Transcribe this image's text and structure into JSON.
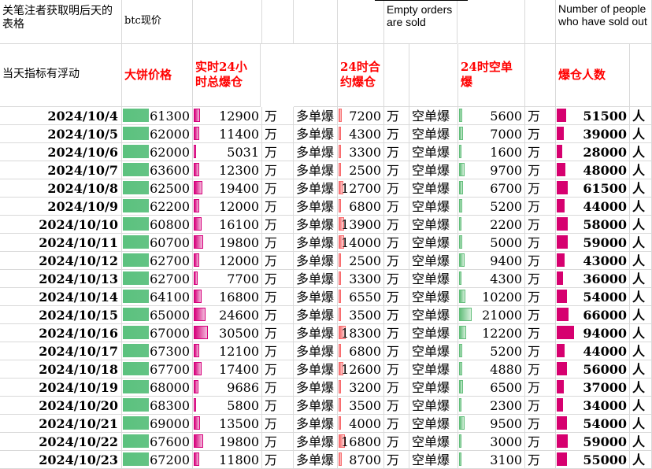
{
  "header": {
    "note_top": "关笔注者获取明后天的表格",
    "btc_now": "btc现价",
    "note_float": "当天指标有浮动",
    "price_label": "大饼价格",
    "total_liq_label": "实时24小时总爆仓",
    "contract_liq_label": "24时合约爆仓",
    "empty_sold": "Empty orders are sold",
    "short_liq_label": "24时空单爆",
    "people_sold_out": "Number of people who have sold out",
    "people_liq_label": "爆仓人数"
  },
  "units": {
    "wan": "万",
    "ren": "人",
    "long_liq": "多单爆",
    "short_liq": "空单爆"
  },
  "colors": {
    "header_red": "#ff0000",
    "price_bar": "#63c384",
    "total_bar": "#d6007b",
    "long_bar": "#f8696b",
    "short_bar": "#63be7b",
    "people_bar": "#d6006f"
  },
  "rows": [
    {
      "date": "2024/10/4",
      "price": "61300",
      "total": "12900",
      "long": "7200",
      "short": "5600",
      "people": "51500"
    },
    {
      "date": "2024/10/5",
      "price": "62000",
      "total": "11400",
      "long": "4300",
      "short": "7000",
      "people": "39000"
    },
    {
      "date": "2024/10/6",
      "price": "62000",
      "total": "5031",
      "long": "3300",
      "short": "1600",
      "people": "28000"
    },
    {
      "date": "2024/10/7",
      "price": "63600",
      "total": "12300",
      "long": "2500",
      "short": "9700",
      "people": "48000"
    },
    {
      "date": "2024/10/8",
      "price": "62500",
      "total": "19400",
      "long": "12700",
      "short": "6700",
      "people": "61500"
    },
    {
      "date": "2024/10/9",
      "price": "62200",
      "total": "12000",
      "long": "6800",
      "short": "5200",
      "people": "44000"
    },
    {
      "date": "2024/10/10",
      "price": "60800",
      "total": "16100",
      "long": "13900",
      "short": "2200",
      "people": "58000"
    },
    {
      "date": "2024/10/11",
      "price": "60700",
      "total": "19800",
      "long": "14000",
      "short": "5000",
      "people": "59000"
    },
    {
      "date": "2024/10/12",
      "price": "62700",
      "total": "12000",
      "long": "2500",
      "short": "9400",
      "people": "43000"
    },
    {
      "date": "2024/10/13",
      "price": "62700",
      "total": "7700",
      "long": "3300",
      "short": "4300",
      "people": "36000"
    },
    {
      "date": "2024/10/14",
      "price": "64100",
      "total": "16800",
      "long": "6550",
      "short": "10200",
      "people": "54000"
    },
    {
      "date": "2024/10/15",
      "price": "65000",
      "total": "24600",
      "long": "3500",
      "short": "21000",
      "people": "66000"
    },
    {
      "date": "2024/10/16",
      "price": "67000",
      "total": "30500",
      "long": "18300",
      "short": "12200",
      "people": "94000"
    },
    {
      "date": "2024/10/17",
      "price": "67300",
      "total": "12100",
      "long": "6800",
      "short": "5200",
      "people": "44000"
    },
    {
      "date": "2024/10/18",
      "price": "67700",
      "total": "17400",
      "long": "12600",
      "short": "4880",
      "people": "56000"
    },
    {
      "date": "2024/10/19",
      "price": "68000",
      "total": "9686",
      "long": "3200",
      "short": "6500",
      "people": "37000"
    },
    {
      "date": "2024/10/20",
      "price": "68300",
      "total": "5800",
      "long": "3500",
      "short": "2300",
      "people": "34000"
    },
    {
      "date": "2024/10/21",
      "price": "69000",
      "total": "13500",
      "long": "4000",
      "short": "9500",
      "people": "54000"
    },
    {
      "date": "2024/10/22",
      "price": "67600",
      "total": "19800",
      "long": "16800",
      "short": "3000",
      "people": "59000"
    },
    {
      "date": "2024/10/23",
      "price": "67200",
      "total": "11800",
      "long": "8700",
      "short": "3100",
      "people": "55000"
    }
  ]
}
